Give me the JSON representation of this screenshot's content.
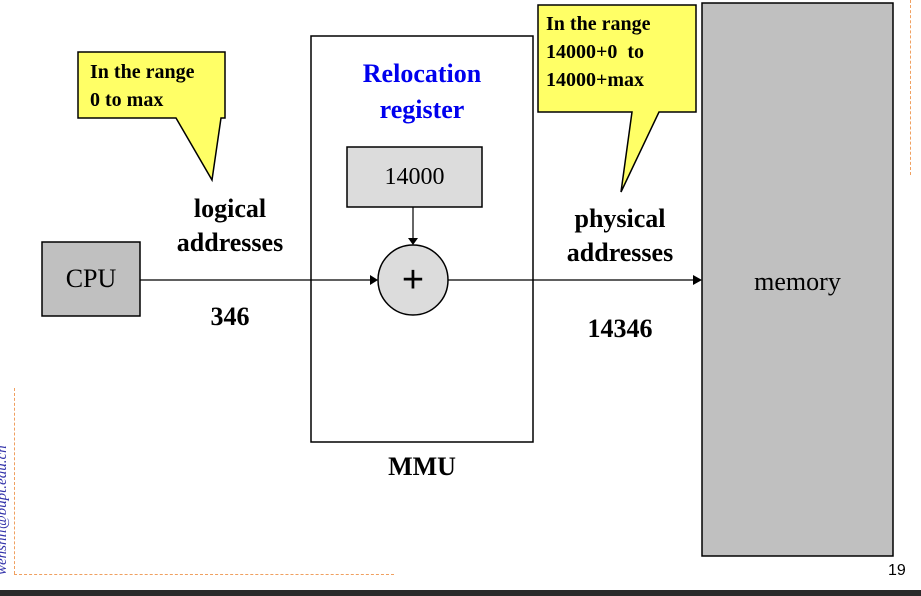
{
  "callout_logical": {
    "line1": "In the range",
    "line2": "0 to max"
  },
  "callout_physical": {
    "line1": "In the range",
    "line2": "14000+0  to",
    "line3": "14000+max"
  },
  "mmu": {
    "label": "MMU",
    "register_title_line1": "Relocation",
    "register_title_line2": "register",
    "register_value": "14000",
    "adder_symbol": "+"
  },
  "cpu_label": "CPU",
  "memory_label": "memory",
  "logical": {
    "line1": "logical",
    "line2": "addresses",
    "value": "346"
  },
  "physical": {
    "line1": "physical",
    "line2": "addresses",
    "value": "14346"
  },
  "email": "wenshli@bupt.edu.cn",
  "page_number": "19",
  "colors": {
    "callout_fill": "#ffff66",
    "box_fill": "#c0c0c0",
    "memory_fill": "#c0c0c0",
    "register_fill": "#dcdcdc",
    "adder_fill": "#dcdcdc",
    "title_blue": "#0000ee",
    "dashed_border": "#f0a060"
  }
}
